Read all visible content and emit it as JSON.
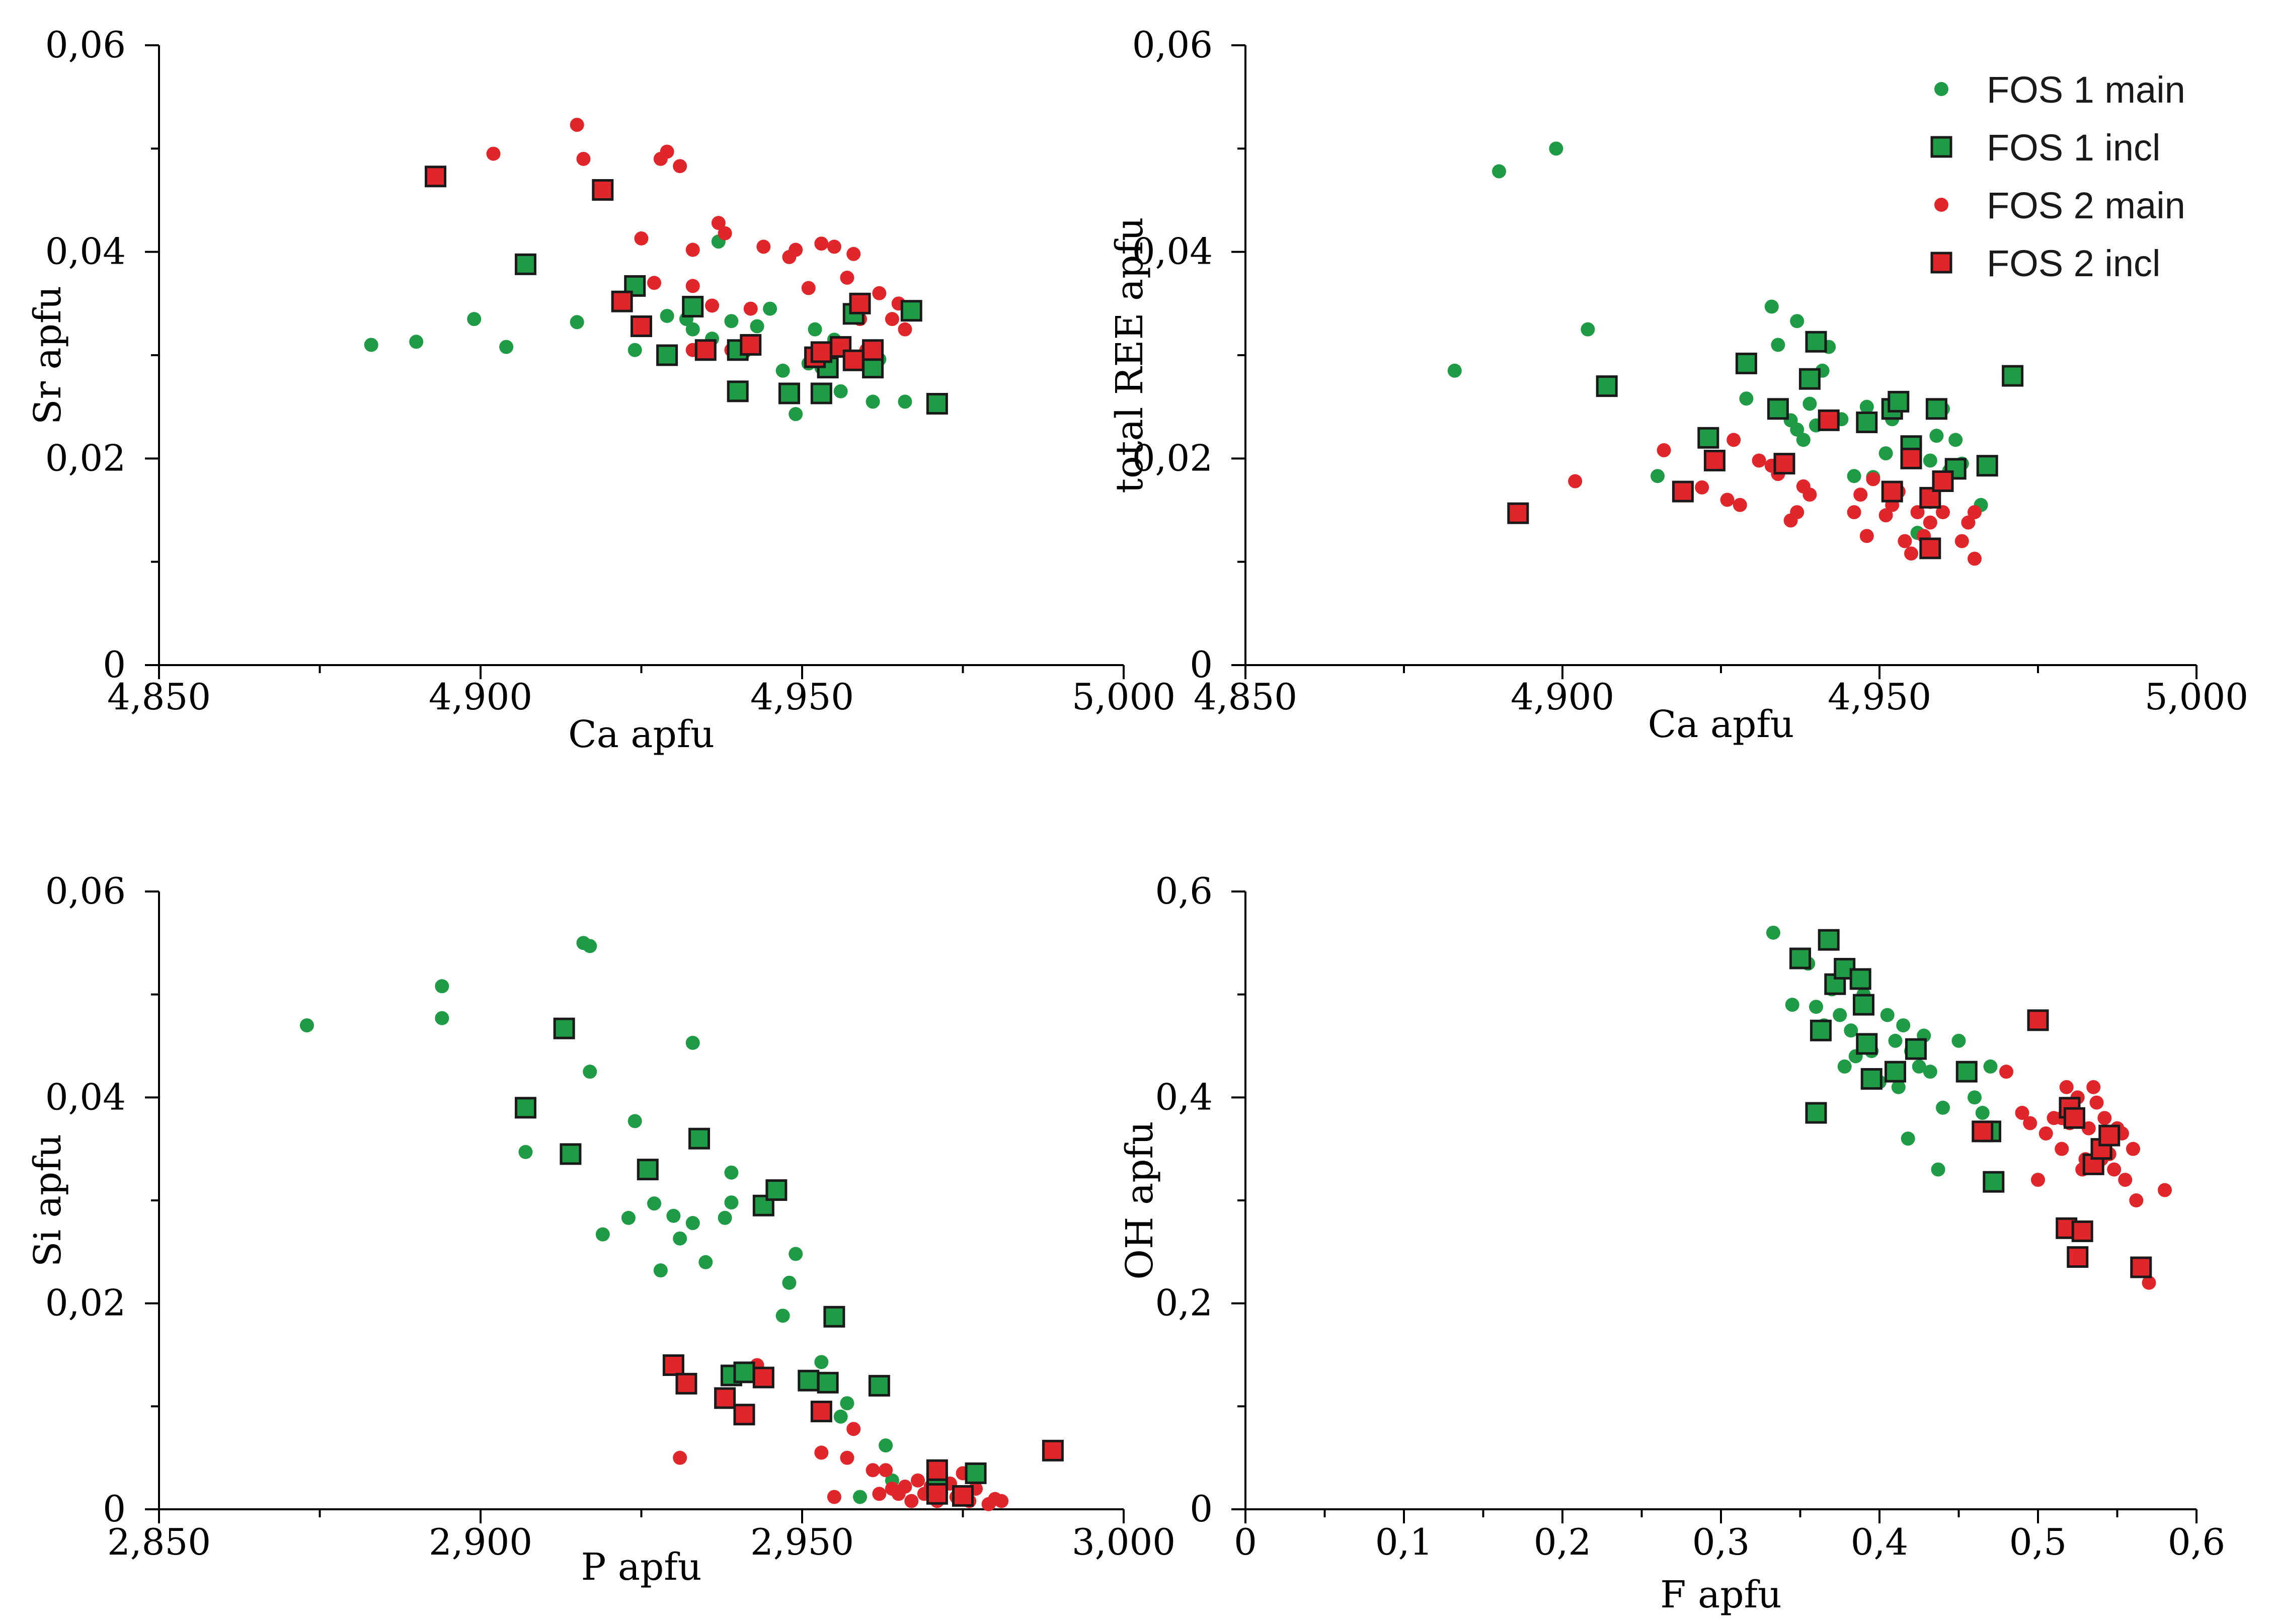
{
  "colors": {
    "green": "#1f9a45",
    "red": "#e0262b",
    "axis": "#000000"
  },
  "legend": [
    {
      "label": "FOS 1 main",
      "marker": "circle",
      "color": "#1f9a45"
    },
    {
      "label": "FOS 1 incl",
      "marker": "square",
      "color": "#1f9a45"
    },
    {
      "label": "FOS 2 main",
      "marker": "circle",
      "color": "#e0262b"
    },
    {
      "label": "FOS 2 incl",
      "marker": "square",
      "color": "#e0262b"
    }
  ],
  "chart_data": [
    {
      "type": "scatter",
      "title": "",
      "xlabel": "Ca apfu",
      "ylabel": "Sr apfu",
      "xlim": [
        4.85,
        5.0
      ],
      "ylim": [
        0,
        0.06
      ],
      "xticks": [
        4.85,
        4.9,
        4.95,
        5.0
      ],
      "xtick_labels": [
        "4,850",
        "4,900",
        "4,950",
        "5,000"
      ],
      "yticks": [
        0,
        0.02,
        0.04,
        0.06
      ],
      "ytick_labels": [
        "0",
        "0,02",
        "0,04",
        "0,06"
      ],
      "series": [
        {
          "name": "FOS 1 main",
          "x": [
            4.883,
            4.89,
            4.899,
            4.904,
            4.915,
            4.924,
            4.929,
            4.932,
            4.933,
            4.936,
            4.937,
            4.939,
            4.941,
            4.943,
            4.945,
            4.947,
            4.949,
            4.951,
            4.952,
            4.953,
            4.955,
            4.956,
            4.958,
            4.961,
            4.962,
            4.966
          ],
          "y": [
            0.031,
            0.0313,
            0.0335,
            0.0308,
            0.0332,
            0.0305,
            0.0338,
            0.0335,
            0.0325,
            0.0316,
            0.041,
            0.0333,
            0.0303,
            0.0328,
            0.0345,
            0.0285,
            0.0243,
            0.0292,
            0.0325,
            0.0288,
            0.0315,
            0.0265,
            0.0338,
            0.0255,
            0.0296,
            0.0255
          ]
        },
        {
          "name": "FOS 1 incl",
          "x": [
            4.907,
            4.924,
            4.929,
            4.933,
            4.94,
            4.94,
            4.948,
            4.953,
            4.954,
            4.958,
            4.961,
            4.967,
            4.971
          ],
          "y": [
            0.0388,
            0.0367,
            0.03,
            0.0347,
            0.0265,
            0.0305,
            0.0263,
            0.0263,
            0.0288,
            0.034,
            0.0288,
            0.0343,
            0.0253
          ]
        },
        {
          "name": "FOS 2 main",
          "x": [
            4.902,
            4.915,
            4.916,
            4.925,
            4.927,
            4.928,
            4.929,
            4.931,
            4.933,
            4.933,
            4.933,
            4.936,
            4.937,
            4.938,
            4.939,
            4.942,
            4.944,
            4.948,
            4.949,
            4.951,
            4.953,
            4.955,
            4.957,
            4.958,
            4.959,
            4.96,
            4.962,
            4.964,
            4.965,
            4.966
          ],
          "y": [
            0.0495,
            0.0523,
            0.049,
            0.0413,
            0.037,
            0.049,
            0.0497,
            0.0483,
            0.0402,
            0.0367,
            0.0305,
            0.0348,
            0.0428,
            0.0418,
            0.0305,
            0.0345,
            0.0405,
            0.0395,
            0.0402,
            0.0365,
            0.0408,
            0.0405,
            0.0375,
            0.0398,
            0.0335,
            0.0305,
            0.036,
            0.0335,
            0.035,
            0.0325
          ]
        },
        {
          "name": "FOS 2 incl",
          "x": [
            4.893,
            4.919,
            4.922,
            4.925,
            4.935,
            4.942,
            4.952,
            4.953,
            4.956,
            4.958,
            4.959,
            4.961
          ],
          "y": [
            0.0473,
            0.046,
            0.0352,
            0.0328,
            0.0305,
            0.031,
            0.0298,
            0.0303,
            0.0308,
            0.0295,
            0.035,
            0.0305
          ]
        }
      ]
    },
    {
      "type": "scatter",
      "title": "",
      "xlabel": "Ca apfu",
      "ylabel": "total REE apfu",
      "xlim": [
        4.85,
        5.0
      ],
      "ylim": [
        0,
        0.06
      ],
      "xticks": [
        4.85,
        4.9,
        4.95,
        5.0
      ],
      "xtick_labels": [
        "4,850",
        "4,900",
        "4,950",
        "5,000"
      ],
      "yticks": [
        0,
        0.02,
        0.04,
        0.06
      ],
      "ytick_labels": [
        "0",
        "0,02",
        "0,04",
        "0,06"
      ],
      "series": [
        {
          "name": "FOS 1 main",
          "x": [
            4.883,
            4.89,
            4.899,
            4.904,
            4.915,
            4.929,
            4.933,
            4.934,
            4.936,
            4.937,
            4.937,
            4.938,
            4.939,
            4.94,
            4.941,
            4.942,
            4.944,
            4.946,
            4.948,
            4.949,
            4.951,
            4.952,
            4.953,
            4.956,
            4.958,
            4.959,
            4.96,
            4.961,
            4.962,
            4.963,
            4.966
          ],
          "y": [
            0.0285,
            0.0478,
            0.05,
            0.0325,
            0.0183,
            0.0258,
            0.0347,
            0.031,
            0.0237,
            0.0333,
            0.0228,
            0.0218,
            0.0253,
            0.0232,
            0.0285,
            0.0308,
            0.0238,
            0.0183,
            0.025,
            0.0182,
            0.0205,
            0.0238,
            0.0253,
            0.0128,
            0.0198,
            0.0222,
            0.0248,
            0.0188,
            0.0218,
            0.0195,
            0.0155
          ]
        },
        {
          "name": "FOS 1 incl",
          "x": [
            4.907,
            4.923,
            4.929,
            4.934,
            4.939,
            4.94,
            4.948,
            4.952,
            4.953,
            4.955,
            4.959,
            4.962,
            4.967,
            4.971
          ],
          "y": [
            0.027,
            0.022,
            0.0292,
            0.0248,
            0.0277,
            0.0313,
            0.0235,
            0.0248,
            0.0255,
            0.0212,
            0.0248,
            0.019,
            0.0193,
            0.028
          ]
        },
        {
          "name": "FOS 2 main",
          "x": [
            4.902,
            4.916,
            4.922,
            4.926,
            4.927,
            4.928,
            4.931,
            4.933,
            4.934,
            4.936,
            4.937,
            4.938,
            4.939,
            4.946,
            4.947,
            4.948,
            4.949,
            4.951,
            4.952,
            4.953,
            4.954,
            4.955,
            4.956,
            4.957,
            4.958,
            4.958,
            4.96,
            4.963,
            4.964,
            4.965,
            4.965
          ],
          "y": [
            0.0178,
            0.0208,
            0.0172,
            0.016,
            0.0218,
            0.0155,
            0.0198,
            0.0193,
            0.0185,
            0.014,
            0.0148,
            0.0173,
            0.0165,
            0.0148,
            0.0165,
            0.0125,
            0.018,
            0.0145,
            0.0155,
            0.0168,
            0.012,
            0.0108,
            0.0148,
            0.0125,
            0.0138,
            0.0158,
            0.0148,
            0.012,
            0.0138,
            0.0103,
            0.0148
          ]
        },
        {
          "name": "FOS 2 incl",
          "x": [
            4.893,
            4.919,
            4.924,
            4.935,
            4.942,
            4.952,
            4.955,
            4.958,
            4.958,
            4.96
          ],
          "y": [
            0.0147,
            0.0168,
            0.0198,
            0.0195,
            0.0237,
            0.0168,
            0.02,
            0.0113,
            0.0162,
            0.0178
          ]
        }
      ]
    },
    {
      "type": "scatter",
      "title": "",
      "xlabel": "P apfu",
      "ylabel": "Si apfu",
      "xlim": [
        2.85,
        3.0
      ],
      "ylim": [
        0,
        0.06
      ],
      "xticks": [
        2.85,
        2.9,
        2.95,
        3.0
      ],
      "xtick_labels": [
        "2,850",
        "2,900",
        "2,950",
        "3,000"
      ],
      "yticks": [
        0,
        0.02,
        0.04,
        0.06
      ],
      "ytick_labels": [
        "0",
        "0,02",
        "0,04",
        "0,06"
      ],
      "series": [
        {
          "name": "FOS 1 main",
          "x": [
            2.873,
            2.894,
            2.894,
            2.907,
            2.916,
            2.917,
            2.917,
            2.919,
            2.923,
            2.924,
            2.927,
            2.928,
            2.93,
            2.931,
            2.933,
            2.933,
            2.935,
            2.938,
            2.939,
            2.939,
            2.941,
            2.947,
            2.948,
            2.949,
            2.953,
            2.956,
            2.957,
            2.959,
            2.963,
            2.964
          ],
          "y": [
            0.047,
            0.0508,
            0.0477,
            0.0347,
            0.055,
            0.0547,
            0.0425,
            0.0267,
            0.0283,
            0.0377,
            0.0297,
            0.0232,
            0.0285,
            0.0263,
            0.0278,
            0.0453,
            0.024,
            0.0283,
            0.0327,
            0.0298,
            0.0133,
            0.0188,
            0.022,
            0.0248,
            0.0143,
            0.009,
            0.0103,
            0.0012,
            0.0062,
            0.0028
          ]
        },
        {
          "name": "FOS 1 incl",
          "x": [
            2.907,
            2.913,
            2.914,
            2.926,
            2.934,
            2.939,
            2.941,
            2.944,
            2.946,
            2.951,
            2.954,
            2.955,
            2.962,
            2.971,
            2.977
          ],
          "y": [
            0.039,
            0.0467,
            0.0345,
            0.033,
            0.036,
            0.013,
            0.0133,
            0.0295,
            0.031,
            0.0125,
            0.0123,
            0.0187,
            0.012,
            0.0025,
            0.0035
          ]
        },
        {
          "name": "FOS 2 main",
          "x": [
            2.931,
            2.943,
            2.953,
            2.955,
            2.957,
            2.958,
            2.961,
            2.962,
            2.963,
            2.964,
            2.965,
            2.966,
            2.967,
            2.968,
            2.969,
            2.97,
            2.971,
            2.973,
            2.974,
            2.975,
            2.976,
            2.977,
            2.979,
            2.98,
            2.981
          ],
          "y": [
            0.005,
            0.014,
            0.0055,
            0.0012,
            0.005,
            0.0078,
            0.0038,
            0.0015,
            0.0038,
            0.002,
            0.0015,
            0.0022,
            0.0008,
            0.0028,
            0.0015,
            0.0022,
            0.0008,
            0.0025,
            0.0012,
            0.0035,
            0.0008,
            0.002,
            0.0005,
            0.001,
            0.0008
          ]
        },
        {
          "name": "FOS 2 incl",
          "x": [
            2.93,
            2.932,
            2.938,
            2.941,
            2.944,
            2.953,
            2.971,
            2.971,
            2.975,
            2.989
          ],
          "y": [
            0.014,
            0.0122,
            0.0108,
            0.0092,
            0.0128,
            0.0095,
            0.0038,
            0.0015,
            0.0013,
            0.0057
          ]
        }
      ]
    },
    {
      "type": "scatter",
      "title": "",
      "xlabel": "F apfu",
      "ylabel": "OH apfu",
      "xlim": [
        0,
        0.6
      ],
      "ylim": [
        0,
        0.6
      ],
      "xticks": [
        0,
        0.1,
        0.2,
        0.3,
        0.4,
        0.5,
        0.6
      ],
      "xtick_labels": [
        "0",
        "0,1",
        "0,2",
        "0,3",
        "0,4",
        "0,5",
        "0,6"
      ],
      "yticks": [
        0,
        0.2,
        0.4,
        0.6
      ],
      "ytick_labels": [
        "0",
        "0,2",
        "0,4",
        "0,6"
      ],
      "series": [
        {
          "name": "FOS 1 main",
          "x": [
            0.333,
            0.345,
            0.355,
            0.36,
            0.365,
            0.37,
            0.375,
            0.378,
            0.382,
            0.385,
            0.39,
            0.395,
            0.4,
            0.405,
            0.41,
            0.412,
            0.415,
            0.418,
            0.42,
            0.425,
            0.428,
            0.432,
            0.437,
            0.44,
            0.45,
            0.46,
            0.465,
            0.47
          ],
          "y": [
            0.56,
            0.49,
            0.53,
            0.488,
            0.47,
            0.505,
            0.48,
            0.43,
            0.465,
            0.44,
            0.5,
            0.445,
            0.415,
            0.48,
            0.455,
            0.41,
            0.47,
            0.36,
            0.445,
            0.43,
            0.46,
            0.425,
            0.33,
            0.39,
            0.455,
            0.4,
            0.385,
            0.43
          ]
        },
        {
          "name": "FOS 1 incl",
          "x": [
            0.35,
            0.36,
            0.363,
            0.368,
            0.372,
            0.378,
            0.388,
            0.39,
            0.392,
            0.395,
            0.41,
            0.423,
            0.455,
            0.47,
            0.472
          ],
          "y": [
            0.535,
            0.385,
            0.465,
            0.553,
            0.51,
            0.525,
            0.515,
            0.49,
            0.452,
            0.418,
            0.425,
            0.447,
            0.425,
            0.367,
            0.318
          ]
        },
        {
          "name": "FOS 2 main",
          "x": [
            0.468,
            0.48,
            0.49,
            0.495,
            0.5,
            0.505,
            0.51,
            0.515,
            0.515,
            0.518,
            0.52,
            0.522,
            0.525,
            0.528,
            0.53,
            0.532,
            0.535,
            0.537,
            0.54,
            0.542,
            0.545,
            0.548,
            0.55,
            0.553,
            0.555,
            0.56,
            0.562,
            0.57,
            0.58
          ],
          "y": [
            0.37,
            0.425,
            0.385,
            0.375,
            0.32,
            0.365,
            0.38,
            0.38,
            0.35,
            0.41,
            0.375,
            0.39,
            0.4,
            0.33,
            0.34,
            0.37,
            0.41,
            0.395,
            0.34,
            0.38,
            0.345,
            0.33,
            0.37,
            0.365,
            0.32,
            0.35,
            0.3,
            0.22,
            0.31
          ]
        },
        {
          "name": "FOS 2 incl",
          "x": [
            0.465,
            0.5,
            0.518,
            0.52,
            0.523,
            0.525,
            0.528,
            0.535,
            0.54,
            0.545,
            0.565
          ],
          "y": [
            0.367,
            0.475,
            0.273,
            0.39,
            0.38,
            0.245,
            0.27,
            0.335,
            0.35,
            0.363,
            0.235
          ]
        }
      ]
    }
  ]
}
